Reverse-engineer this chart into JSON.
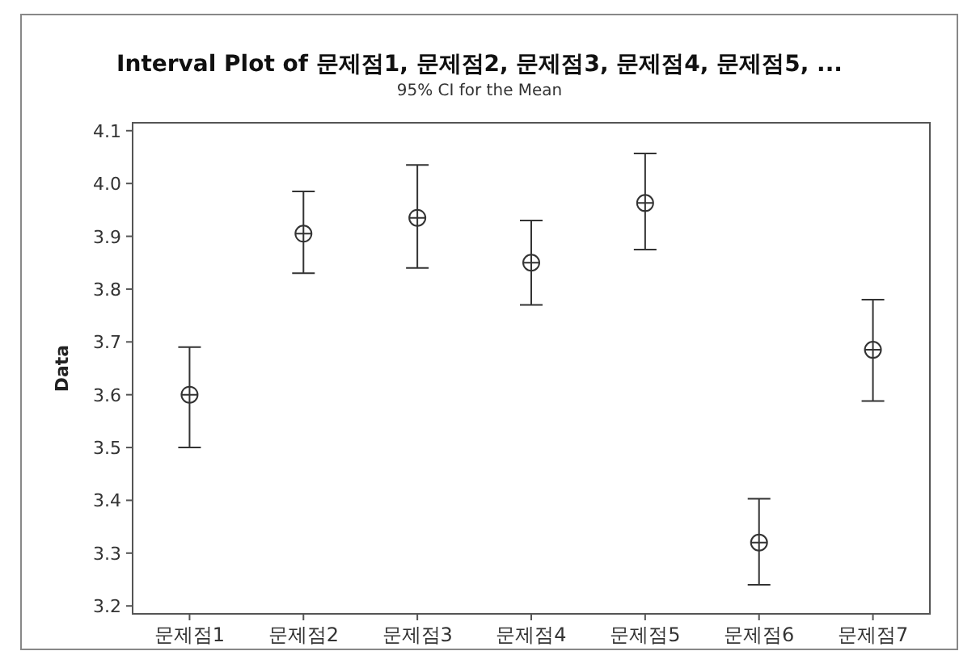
{
  "chart_data": {
    "type": "scatter",
    "title": "Interval Plot of 문제점1, 문제점2, 문제점3, 문제점4, 문제점5, ...",
    "subtitle": "95% CI for the Mean",
    "ylabel": "Data",
    "categories": [
      "문제점1",
      "문제점2",
      "문제점3",
      "문제점4",
      "문제점5",
      "문제점6",
      "문제점7"
    ],
    "values": [
      3.6,
      3.905,
      3.935,
      3.85,
      3.963,
      3.32,
      3.685
    ],
    "errors": [
      [
        3.5,
        3.69
      ],
      [
        3.83,
        3.985
      ],
      [
        3.84,
        4.035
      ],
      [
        3.77,
        3.93
      ],
      [
        3.875,
        4.057
      ],
      [
        3.24,
        3.403
      ],
      [
        3.588,
        3.78
      ]
    ],
    "color": "#333333",
    "marker": "circle",
    "ylim": [
      3.185,
      4.115
    ],
    "yticks": [
      {
        "value": 3.2,
        "label": "3.2"
      },
      {
        "value": 3.3,
        "label": "3.3"
      },
      {
        "value": 3.4,
        "label": "3.4"
      },
      {
        "value": 3.5,
        "label": "3.5"
      },
      {
        "value": 3.6,
        "label": "3.6"
      },
      {
        "value": 3.7,
        "label": "3.7"
      },
      {
        "value": 3.8,
        "label": "3.8"
      },
      {
        "value": 3.9,
        "label": "3.9"
      },
      {
        "value": 4.0,
        "label": "4.0"
      },
      {
        "value": 4.1,
        "label": "4.1"
      }
    ],
    "grid": false
  }
}
